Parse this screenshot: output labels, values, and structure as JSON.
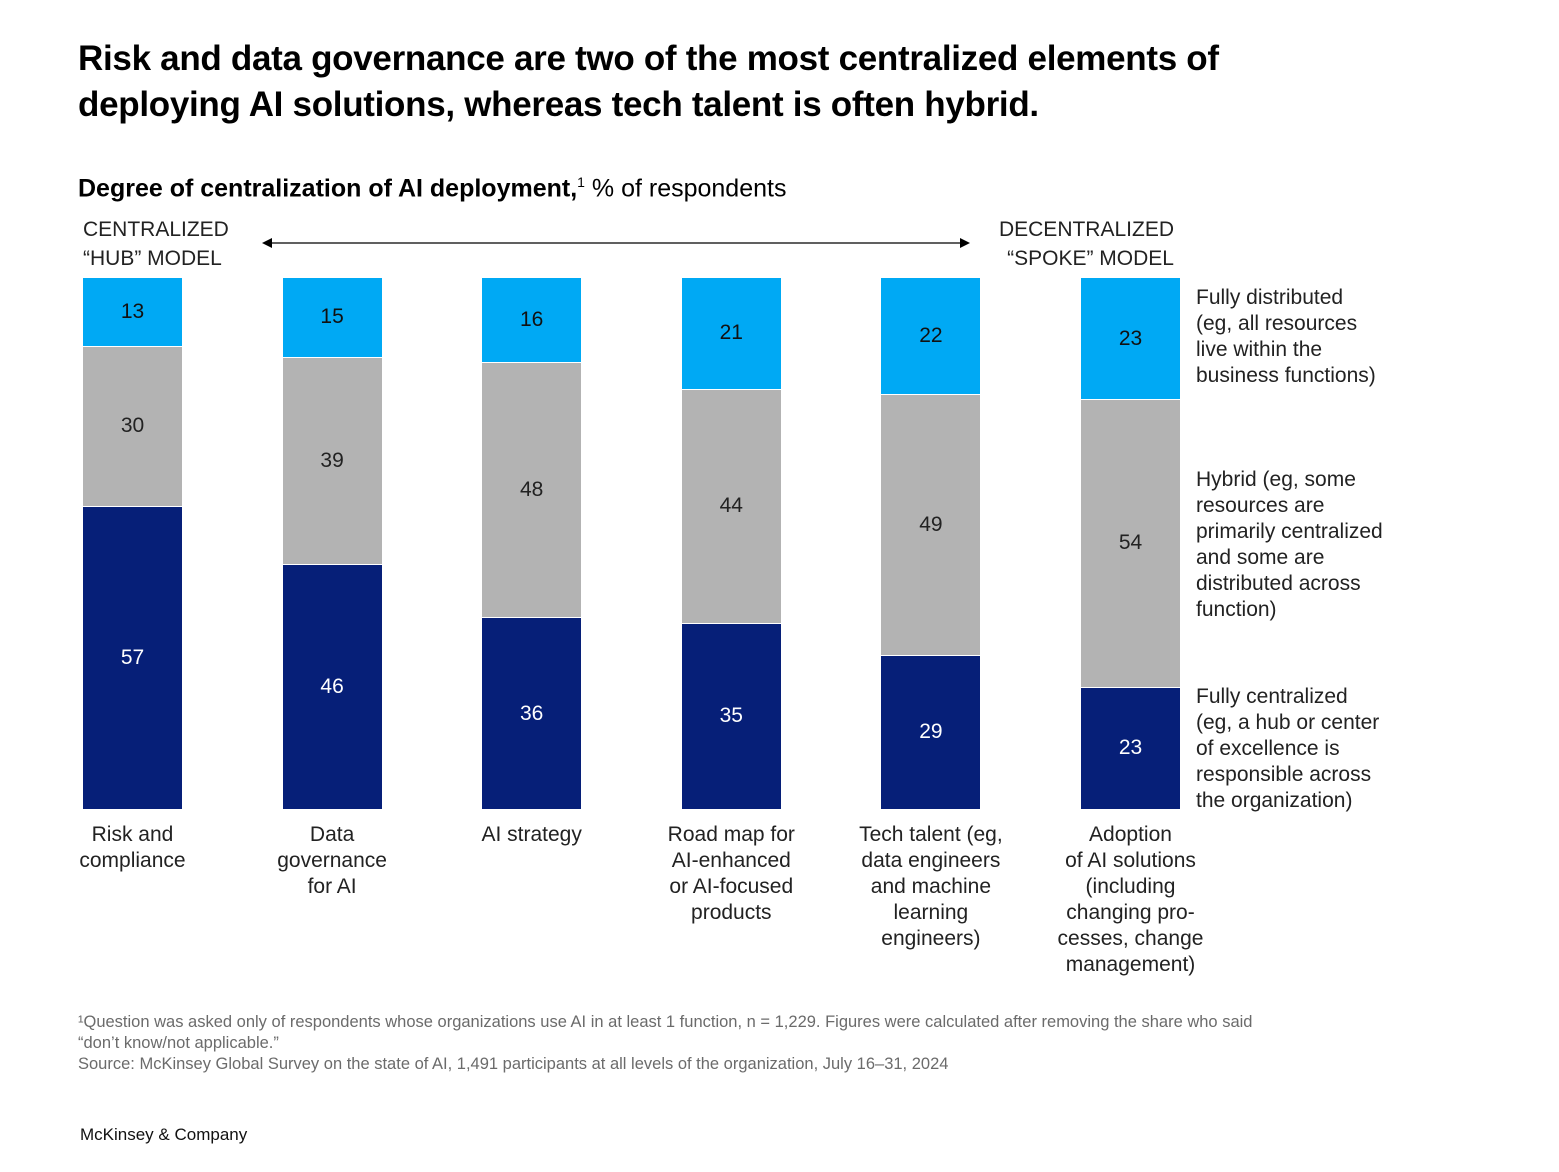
{
  "title": "Risk and data governance are two of the most centralized elements of deploying AI solutions, whereas tech talent is often hybrid.",
  "subtitle": {
    "bold": "Degree of centralization of AI deployment,",
    "footnote_mark": "1",
    "rest": " % of respondents"
  },
  "scale_labels": {
    "left": "CENTRALIZED\n“HUB” MODEL",
    "right": "DECENTRALIZED\n“SPOKE” MODEL"
  },
  "chart_data": {
    "type": "bar",
    "stacked": true,
    "orientation": "vertical",
    "ylim": [
      0,
      100
    ],
    "categories": [
      "Risk and\ncompliance",
      "Data\ngovernance\nfor AI",
      "AI strategy",
      "Road map for\nAI-enhanced\nor AI-focused\nproducts",
      "Tech talent (eg,\ndata engineers\nand machine\nlearning\nengineers)",
      "Adoption\nof AI solutions\n(including\nchanging pro-\ncesses, change\nmanagement)"
    ],
    "series": [
      {
        "name": "Fully centralized\n(eg, a hub or center\nof excellence is\nresponsible across\nthe organization)",
        "color": "#061F78",
        "text_color": "#ffffff",
        "values": [
          57,
          46,
          36,
          35,
          29,
          23
        ]
      },
      {
        "name": "Hybrid (eg, some\nresources are\nprimarily centralized\nand some are\ndistributed across\nfunction)",
        "color": "#B3B3B3",
        "text_color": "#222222",
        "values": [
          30,
          39,
          48,
          44,
          49,
          54
        ]
      },
      {
        "name": "Fully distributed\n(eg, all resources\nlive within the\nbusiness functions)",
        "color": "#00A9F4",
        "text_color": "#111111",
        "values": [
          13,
          15,
          16,
          21,
          22,
          23
        ]
      }
    ],
    "legend_placement": "right",
    "grid": false
  },
  "footnote": "¹Question was asked only of respondents whose organizations use AI in at least 1 function, n = 1,229. Figures were calculated after removing the share who said\n “don’t know/not applicable.”\n Source: McKinsey Global Survey on the state of AI, 1,491 participants at all levels of the organization, July 16–31, 2024",
  "brand": "McKinsey & Company"
}
